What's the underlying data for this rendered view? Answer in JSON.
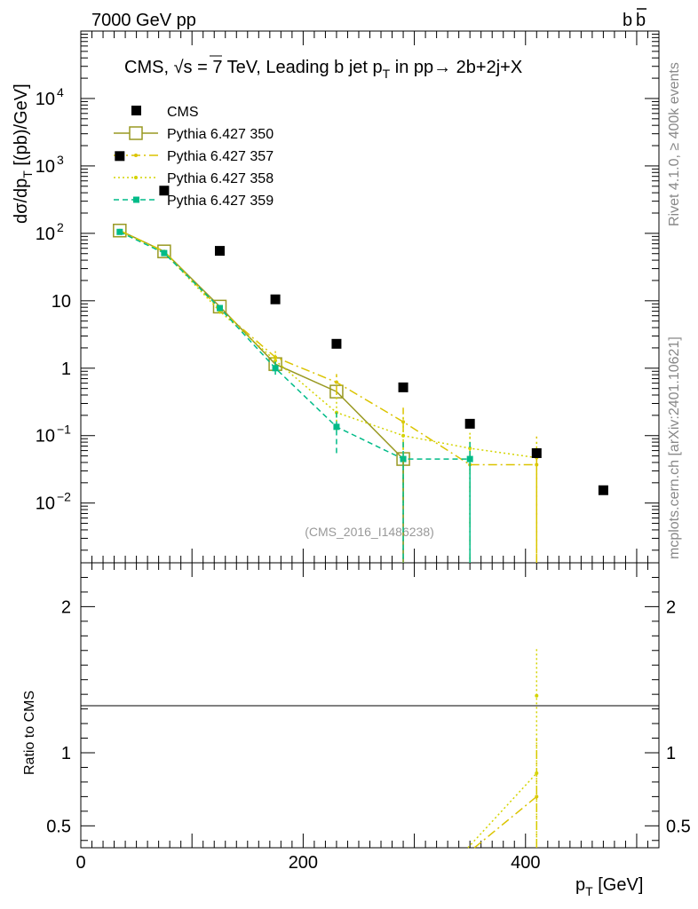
{
  "header": {
    "left": "7000 GeV pp",
    "right": "b",
    "right_bar": "b"
  },
  "side_labels": {
    "rivet": "Rivet 4.1.0, ≥ 400k events",
    "mcplots": "mcplots.cern.ch [arXiv:2401.10621]"
  },
  "plot_title": {
    "pre": "CMS, ",
    "sqrt": "√s",
    "mid": " = 7 TeV, Leading b jet p",
    "sub": "T",
    "post": " in pp→  2b+2j+X"
  },
  "analysis_id": "(CMS_2016_I1486238)",
  "y_axis_label": {
    "main": "dσ/dp",
    "sub": "T",
    "unit": " [(pb)/GeV]"
  },
  "ratio_axis_label": "Ratio to CMS",
  "x_axis_label": {
    "main": "p",
    "sub": "T",
    "unit": " [GeV]"
  },
  "colors": {
    "cms": "#000000",
    "p350": "#999922",
    "p357": "#dbc400",
    "p358": "#d4d400",
    "p359": "#00bb88"
  },
  "chart_data": {
    "type": "scatter",
    "xlim": [
      0,
      520
    ],
    "main_ylim": [
      0.0013,
      100000
    ],
    "main_yscale": "log",
    "ratio_ylim": [
      0.35,
      2.3
    ],
    "x_ticks": [
      {
        "v": 0,
        "label": "0"
      },
      {
        "v": 200,
        "label": "200"
      },
      {
        "v": 400,
        "label": "400"
      }
    ],
    "main_y_ticks": [
      {
        "v": 0.01,
        "label": "10",
        "exp": "−2"
      },
      {
        "v": 0.1,
        "label": "10",
        "exp": "−1"
      },
      {
        "v": 1,
        "label": "1",
        "exp": ""
      },
      {
        "v": 10,
        "label": "10",
        "exp": ""
      },
      {
        "v": 100,
        "label": "10",
        "exp": "2"
      },
      {
        "v": 1000,
        "label": "10",
        "exp": "3"
      },
      {
        "v": 10000,
        "label": "10",
        "exp": "4"
      }
    ],
    "ratio_y_ticks": [
      {
        "v": 0.5,
        "label": "0.5"
      },
      {
        "v": 1,
        "label": "1"
      },
      {
        "v": 2,
        "label": "2"
      }
    ],
    "legend": [
      {
        "name": "CMS",
        "key": "cms"
      },
      {
        "name": "Pythia 6.427 350",
        "key": "p350"
      },
      {
        "name": "Pythia 6.427 357",
        "key": "p357"
      },
      {
        "name": "Pythia 6.427 358",
        "key": "p358"
      },
      {
        "name": "Pythia 6.427 359",
        "key": "p359"
      }
    ],
    "data": {
      "name": "CMS",
      "x": [
        35,
        75,
        125,
        175,
        230,
        290,
        350,
        410,
        470
      ],
      "y": [
        1400,
        430,
        55,
        10.5,
        2.3,
        0.52,
        0.15,
        0.055,
        0.0155
      ]
    },
    "series": [
      {
        "name": "Pythia 6.427 350",
        "key": "p350",
        "x": [
          35,
          75,
          125,
          175,
          230,
          290,
          350,
          410
        ],
        "y": [
          110,
          54,
          8.2,
          1.15,
          0.45,
          0.045,
          null,
          null
        ],
        "err_lo": [
          0,
          0,
          0,
          0,
          0,
          0,
          0,
          0
        ],
        "err_hi": [
          0,
          0,
          0,
          0,
          0,
          0,
          0,
          0
        ]
      },
      {
        "name": "Pythia 6.427 357",
        "key": "p357",
        "x": [
          35,
          75,
          125,
          175,
          230,
          290,
          350,
          410
        ],
        "y": [
          110,
          54,
          7.5,
          1.45,
          0.62,
          0.16,
          0.037,
          0.037
        ],
        "err_lo": [
          5,
          3,
          0.6,
          0.35,
          0.22,
          0.15,
          0.036,
          0.036
        ],
        "err_hi": [
          5,
          3,
          0.6,
          0.4,
          0.2,
          0.1,
          0.06,
          0.06
        ]
      },
      {
        "name": "Pythia 6.427 358",
        "key": "p358",
        "x": [
          35,
          75,
          125,
          175,
          230,
          290,
          350,
          410
        ],
        "y": [
          108,
          52,
          7.0,
          1.3,
          0.22,
          0.1,
          0.065,
          0.047
        ],
        "err_lo": [
          5,
          3,
          0.6,
          0.35,
          0.1,
          0.09,
          0.06,
          0.045
        ],
        "err_hi": [
          5,
          3,
          0.6,
          0.4,
          0.15,
          0.1,
          0.05,
          0.04
        ]
      },
      {
        "name": "Pythia 6.427 359",
        "key": "p359",
        "x": [
          35,
          75,
          125,
          175,
          230,
          290,
          350,
          410
        ],
        "y": [
          105,
          51,
          7.8,
          1.0,
          0.135,
          0.045,
          0.045,
          null
        ],
        "err_lo": [
          5,
          3,
          0.6,
          0.2,
          0.08,
          0.044,
          0.044,
          0
        ],
        "err_hi": [
          5,
          3,
          0.6,
          0.25,
          0.1,
          0.045,
          0.045,
          0
        ]
      }
    ],
    "ratio": [
      {
        "key": "p357",
        "x": [
          330,
          410
        ],
        "y": [
          0.2,
          0.7
        ],
        "err_lo": [
          0,
          0.35
        ],
        "err_hi": [
          0,
          0.4
        ]
      },
      {
        "key": "p358",
        "x": [
          330,
          410
        ],
        "y": [
          0.2,
          0.86
        ],
        "err_lo": [
          0,
          0.5
        ],
        "err_hi": [
          0,
          0.86
        ]
      },
      {
        "key": "p358",
        "x": [
          410
        ],
        "y": [
          1.39
        ],
        "err_lo": [
          0
        ],
        "err_hi": [
          0
        ]
      }
    ]
  }
}
